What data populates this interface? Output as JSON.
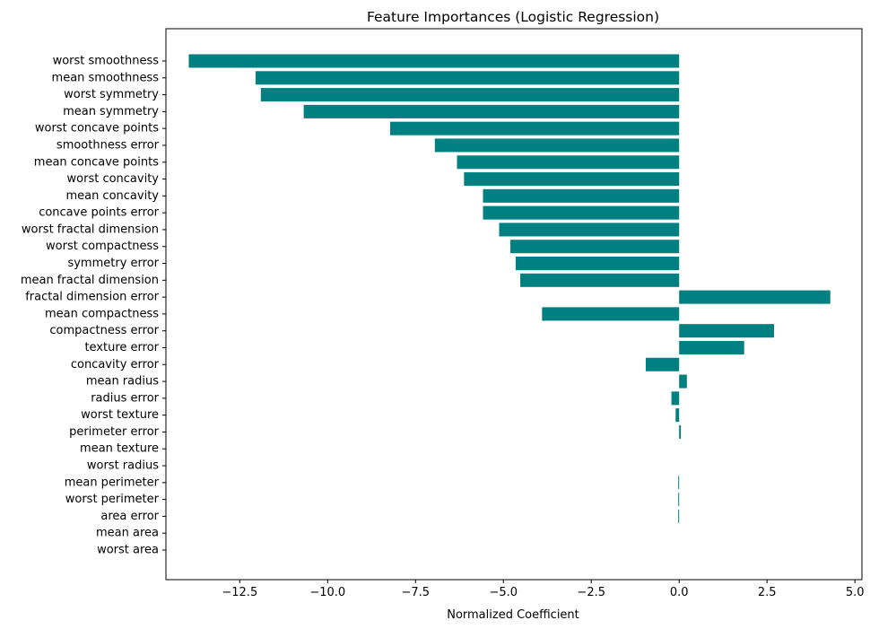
{
  "chart_data": {
    "type": "bar",
    "orientation": "horizontal",
    "title": "Feature Importances (Logistic Regression)",
    "xlabel": "Normalized Coefficient",
    "ylabel": "",
    "xlim": [
      -14.6,
      5.2
    ],
    "xticks": [
      -12.5,
      -10.0,
      -7.5,
      -5.0,
      -2.5,
      0.0,
      2.5,
      5.0
    ],
    "xtick_labels": [
      "−12.5",
      "−10.0",
      "−7.5",
      "−5.0",
      "−2.5",
      "0.0",
      "2.5",
      "5.0"
    ],
    "grid": false,
    "bar_color": "#008080",
    "categories": [
      "worst smoothness",
      "mean smoothness",
      "worst symmetry",
      "mean symmetry",
      "worst concave points",
      "smoothness error",
      "mean concave points",
      "worst concavity",
      "mean concavity",
      "concave points error",
      "worst fractal dimension",
      "worst compactness",
      "symmetry error",
      "mean fractal dimension",
      "fractal dimension error",
      "mean compactness",
      "compactness error",
      "texture error",
      "concavity error",
      "mean radius",
      "radius error",
      "worst texture",
      "perimeter error",
      "mean texture",
      "worst radius",
      "mean perimeter",
      "worst perimeter",
      "area error",
      "mean area",
      "worst area"
    ],
    "values": [
      -13.95,
      -12.05,
      -11.9,
      -10.68,
      -8.22,
      -6.95,
      -6.32,
      -6.12,
      -5.58,
      -5.58,
      -5.12,
      -4.8,
      -4.65,
      -4.52,
      4.3,
      -3.9,
      2.7,
      1.85,
      -0.95,
      0.22,
      -0.22,
      -0.1,
      0.05,
      0.0,
      0.0,
      -0.02,
      -0.02,
      -0.02,
      0.0,
      0.0
    ]
  }
}
